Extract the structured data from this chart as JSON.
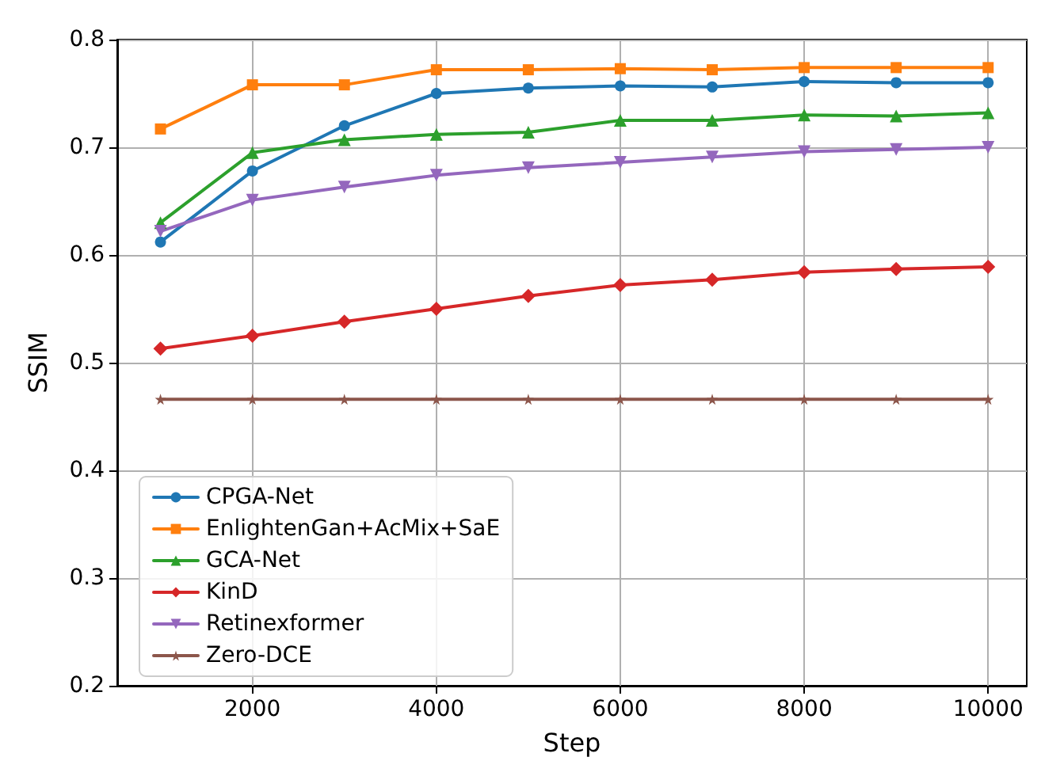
{
  "chart_data": {
    "type": "line",
    "xlabel": "Step",
    "ylabel": "SSIM",
    "x": [
      1000,
      2000,
      3000,
      4000,
      5000,
      6000,
      7000,
      8000,
      9000,
      10000
    ],
    "series": [
      {
        "name": "CPGA-Net",
        "color": "#1f77b4",
        "marker": "circle",
        "values": [
          0.612,
          0.678,
          0.72,
          0.75,
          0.755,
          0.757,
          0.756,
          0.761,
          0.76,
          0.76
        ]
      },
      {
        "name": "EnlightenGan+AcMix+SaE",
        "color": "#ff7f0e",
        "marker": "square",
        "values": [
          0.717,
          0.758,
          0.758,
          0.772,
          0.772,
          0.773,
          0.772,
          0.774,
          0.774,
          0.774
        ]
      },
      {
        "name": "GCA-Net",
        "color": "#2ca02c",
        "marker": "triangle",
        "values": [
          0.63,
          0.695,
          0.707,
          0.712,
          0.714,
          0.725,
          0.725,
          0.73,
          0.729,
          0.732
        ]
      },
      {
        "name": "KinD",
        "color": "#d62728",
        "marker": "diamond",
        "values": [
          0.513,
          0.525,
          0.538,
          0.55,
          0.562,
          0.572,
          0.577,
          0.584,
          0.587,
          0.589
        ]
      },
      {
        "name": "Retinexformer",
        "color": "#9467bd",
        "marker": "triangle-down",
        "values": [
          0.622,
          0.651,
          0.663,
          0.674,
          0.681,
          0.686,
          0.691,
          0.696,
          0.698,
          0.7
        ]
      },
      {
        "name": "Zero-DCE",
        "color": "#8c564b",
        "marker": "star",
        "values": [
          0.466,
          0.466,
          0.466,
          0.466,
          0.466,
          0.466,
          0.466,
          0.466,
          0.466,
          0.466
        ]
      }
    ],
    "xlim": [
      530,
      10420
    ],
    "xticks": [
      2000,
      4000,
      6000,
      8000,
      10000
    ],
    "ylim": [
      0.2,
      0.8
    ],
    "yticks": [
      0.2,
      0.3,
      0.4,
      0.5,
      0.6,
      0.7,
      0.8
    ],
    "grid": true,
    "legend": "bottom left",
    "line_style": "solid"
  }
}
